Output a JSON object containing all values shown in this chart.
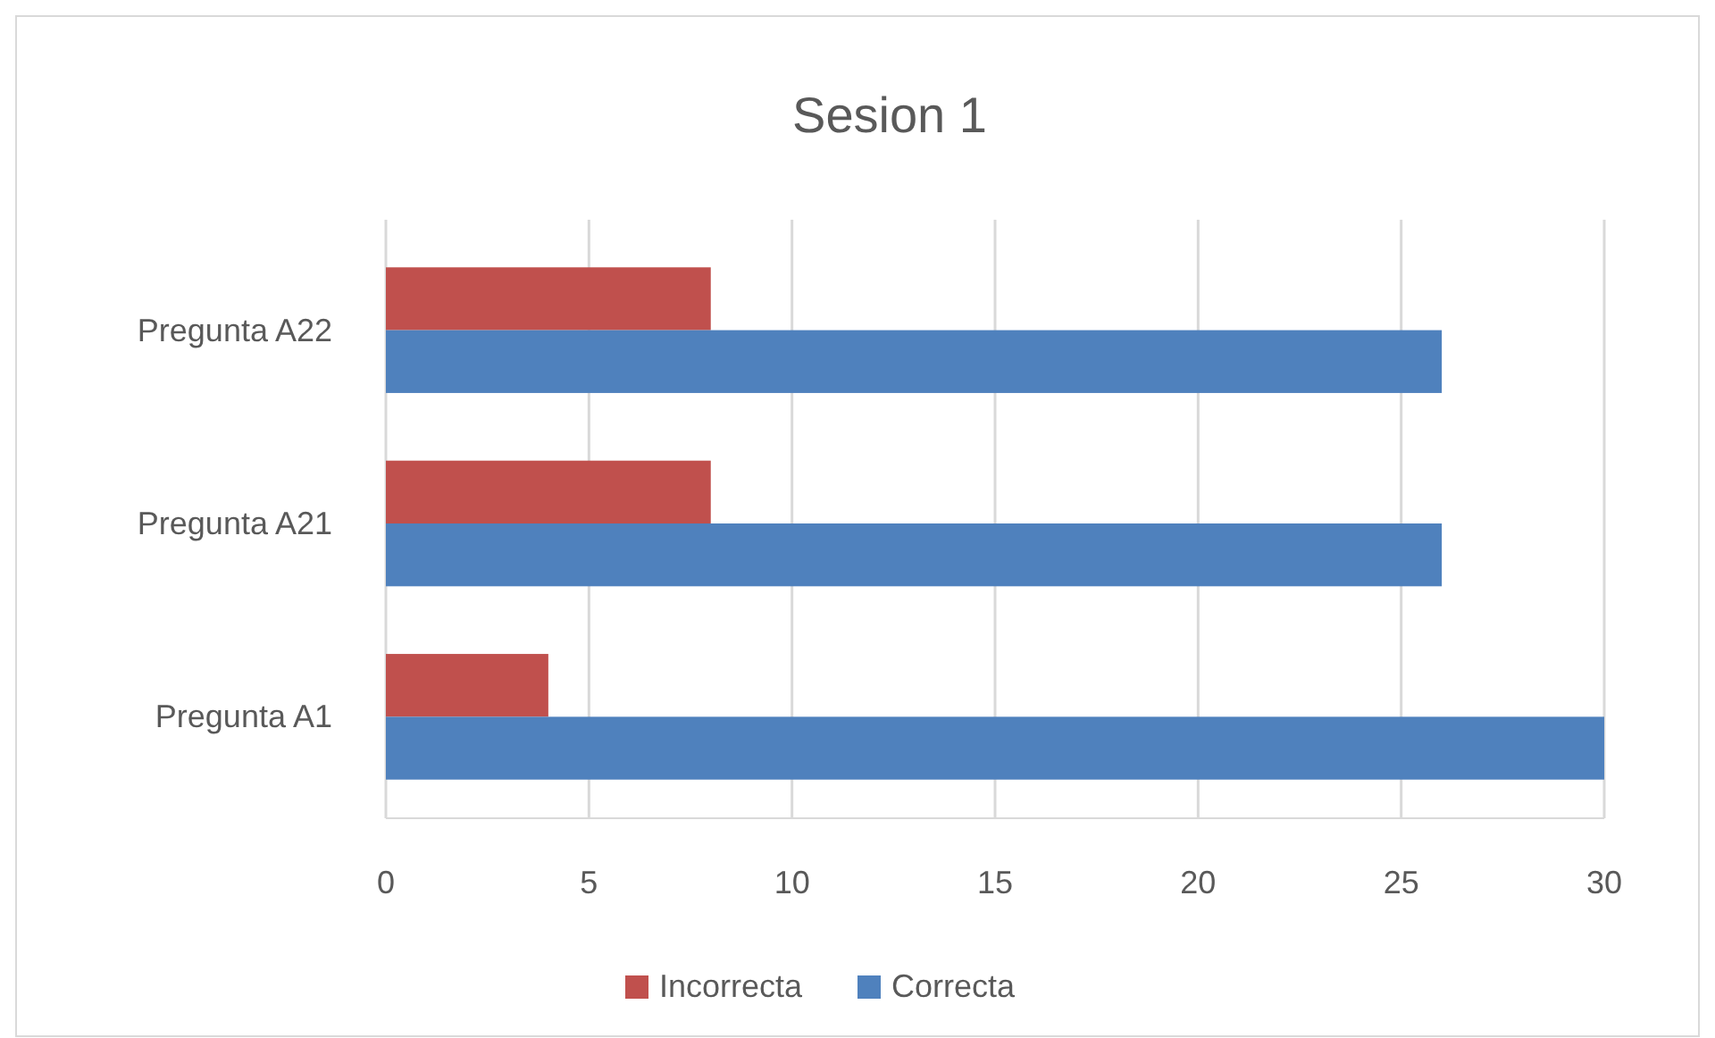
{
  "chart_data": {
    "type": "bar",
    "title": "Sesion 1",
    "orientation": "horizontal",
    "categories": [
      "Pregunta A22",
      "Pregunta A21",
      "Pregunta A1"
    ],
    "series": [
      {
        "name": "Incorrecta",
        "color": "#c0504d",
        "values": [
          8,
          8,
          4
        ]
      },
      {
        "name": "Correcta",
        "color": "#4f81bd",
        "values": [
          26,
          26,
          30
        ]
      }
    ],
    "xlim": [
      0,
      30
    ],
    "xticks": [
      0,
      5,
      10,
      15,
      20,
      25,
      30
    ],
    "grid": "x",
    "legend": "bottom"
  }
}
